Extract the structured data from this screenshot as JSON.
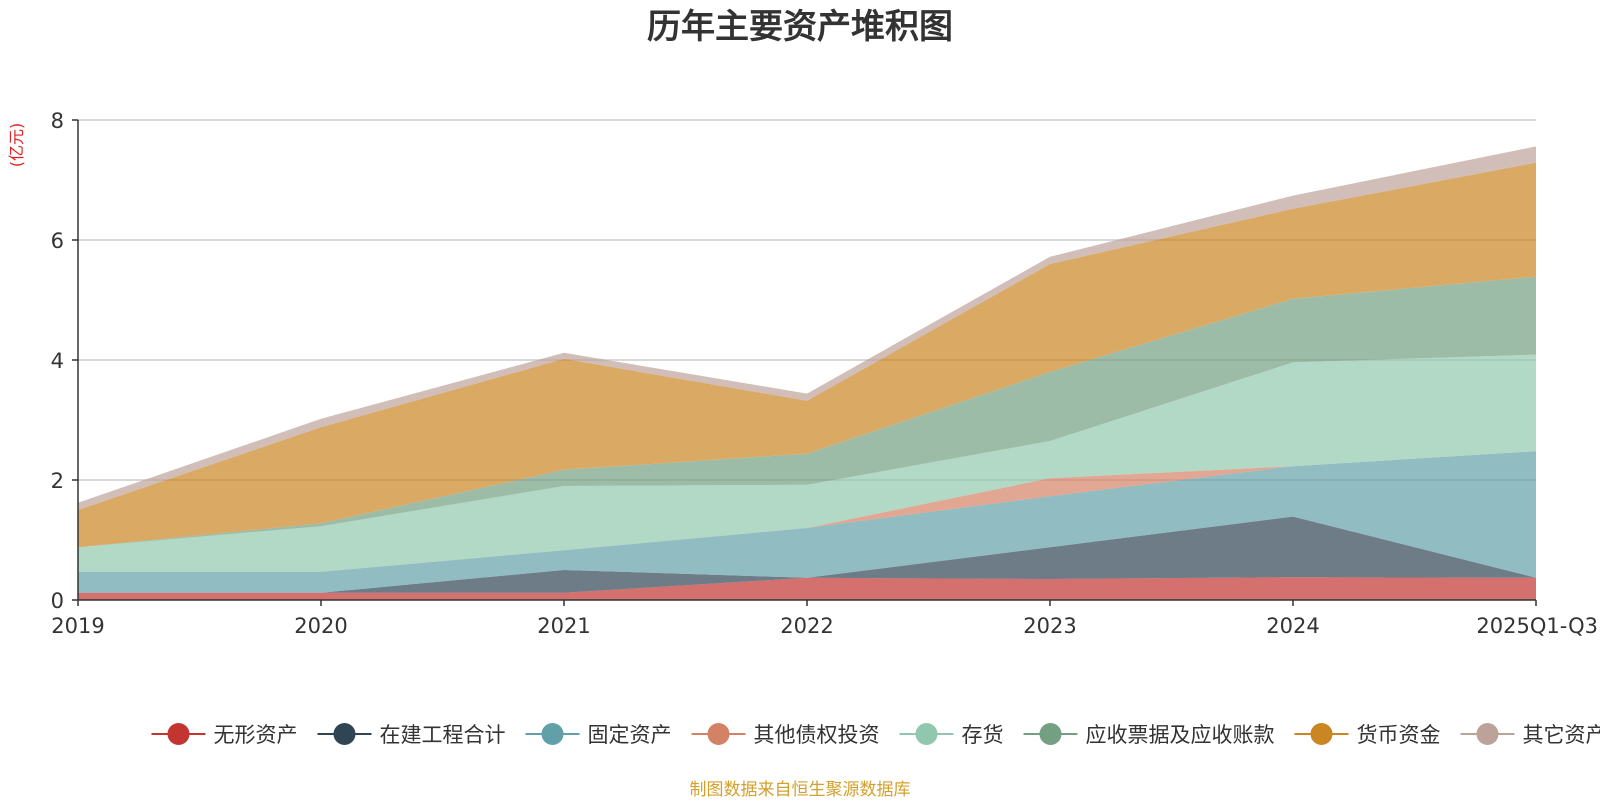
{
  "chart_data": {
    "type": "area",
    "stacked": true,
    "title": "历年主要资产堆积图",
    "ylabel": "(亿元)",
    "xlabel": "",
    "ylim": [
      0,
      8
    ],
    "yticks": [
      "0",
      "2",
      "4",
      "6",
      "8"
    ],
    "categories": [
      "2019",
      "2020",
      "2021",
      "2022",
      "2023",
      "2024",
      "2025Q1-Q3"
    ],
    "grid": true,
    "legend_position": "bottom",
    "series": [
      {
        "name": "无形资产",
        "color": "#c23531",
        "values": [
          0.12,
          0.12,
          0.12,
          0.37,
          0.35,
          0.38,
          0.37
        ]
      },
      {
        "name": "在建工程合计",
        "color": "#2f4554",
        "values": [
          0.0,
          0.0,
          0.38,
          0.0,
          0.53,
          1.01,
          0.0
        ]
      },
      {
        "name": "固定资产",
        "color": "#61a0a8",
        "values": [
          0.35,
          0.35,
          0.33,
          0.83,
          0.85,
          0.84,
          2.11
        ]
      },
      {
        "name": "其他债权投资",
        "color": "#d48265",
        "values": [
          0.0,
          0.0,
          0.0,
          0.0,
          0.3,
          0.0,
          0.0
        ]
      },
      {
        "name": "存货",
        "color": "#91c7ae",
        "values": [
          0.41,
          0.76,
          1.07,
          0.72,
          0.62,
          1.73,
          1.61
        ]
      },
      {
        "name": "应收票据及应收账款",
        "color": "#749f83",
        "values": [
          0.0,
          0.05,
          0.27,
          0.52,
          1.15,
          1.06,
          1.3
        ]
      },
      {
        "name": "货币资金",
        "color": "#ca8622",
        "values": [
          0.62,
          1.6,
          1.85,
          0.88,
          1.8,
          1.5,
          1.9
        ]
      },
      {
        "name": "其它资产",
        "color": "#bda29a",
        "values": [
          0.12,
          0.14,
          0.1,
          0.12,
          0.12,
          0.22,
          0.27
        ]
      }
    ]
  },
  "source_note": "制图数据来自恒生聚源数据库"
}
